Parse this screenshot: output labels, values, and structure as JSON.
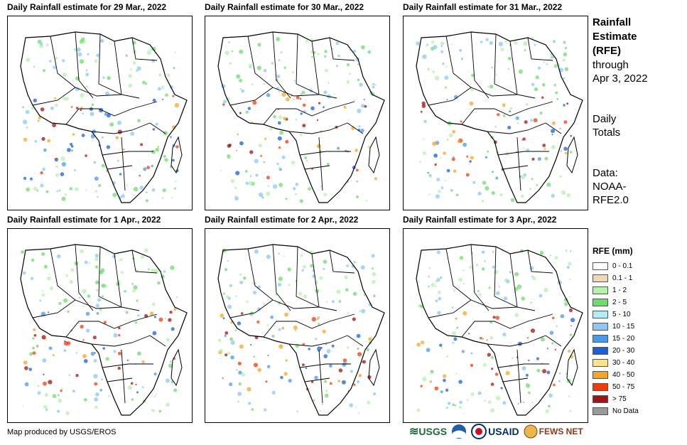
{
  "panels": [
    {
      "title": "Daily Rainfall estimate for 29 Mar., 2022"
    },
    {
      "title": "Daily Rainfall estimate for 30 Mar., 2022"
    },
    {
      "title": "Daily Rainfall estimate for 31 Mar., 2022"
    },
    {
      "title": "Daily Rainfall estimate for 1 Apr., 2022"
    },
    {
      "title": "Daily Rainfall estimate for 2 Apr., 2022"
    },
    {
      "title": "Daily Rainfall estimate for 3 Apr., 2022"
    }
  ],
  "side": {
    "title_line1": "Rainfall",
    "title_line2": "Estimate",
    "title_line3": "(RFE)",
    "through_line1": "through",
    "through_line2": "Apr 3, 2022",
    "daily_line1": "Daily",
    "daily_line2": "Totals",
    "data_line1": "Data:",
    "data_line2": "NOAA-",
    "data_line3": "RFE2.0"
  },
  "legend": {
    "title": "RFE (mm)",
    "items": [
      {
        "label": "0 - 0.1",
        "color": "#ffffff"
      },
      {
        "label": "0.1 - 1",
        "color": "#efd9b4"
      },
      {
        "label": "1 - 2",
        "color": "#b8f0b0"
      },
      {
        "label": "2 - 5",
        "color": "#6fdc6f"
      },
      {
        "label": "5 - 10",
        "color": "#b4ecf5"
      },
      {
        "label": "10 - 15",
        "color": "#8cc8f5"
      },
      {
        "label": "15 - 20",
        "color": "#4a9ae8"
      },
      {
        "label": "20 - 30",
        "color": "#1a60d8"
      },
      {
        "label": "30 - 40",
        "color": "#f8e48c"
      },
      {
        "label": "40 - 50",
        "color": "#f5a623"
      },
      {
        "label": "50 - 75",
        "color": "#f03c0a"
      },
      {
        "label": "> 75",
        "color": "#a01414"
      },
      {
        "label": "No Data",
        "color": "#999999"
      }
    ]
  },
  "footer": {
    "credit": "Map produced by USGS/EROS",
    "logo_usgs": "USGS",
    "logo_usaid": "USAID",
    "logo_fews": "FEWS NET"
  }
}
